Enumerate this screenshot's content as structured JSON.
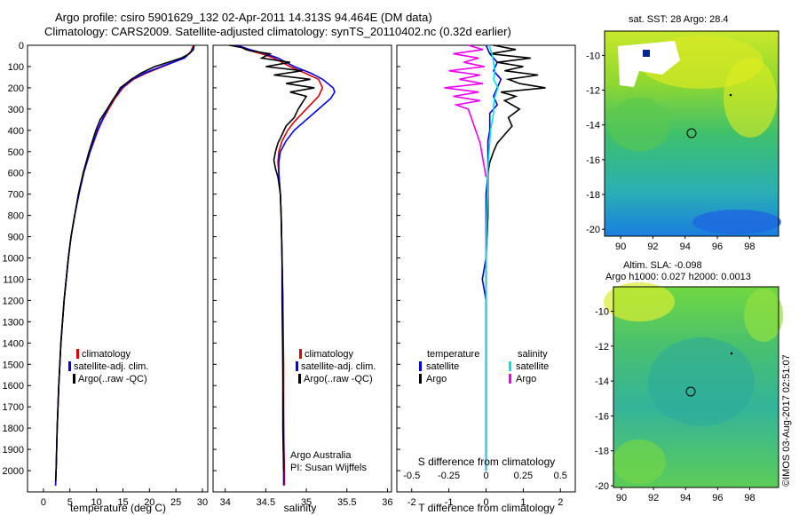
{
  "header": {
    "line1": "Argo profile: csiro 5901629_132 02-Apr-2011 14.313S 94.464E (DM data)",
    "line2": "Climatology: CARS2009. Satellite-adjusted climatology: synTS_20110402.nc (0.32d earlier)"
  },
  "map_titles": {
    "sst": "sat. SST: 28 Argo: 28.4",
    "sla": "Altim. SLA: -0.098",
    "sla2": "Argo h1000: 0.027 h2000: 0.0013"
  },
  "stamp": "©IMOS 03-Aug-2017 02:51:07",
  "colors": {
    "climatology": "#dd0000",
    "satellite": "#0000ee",
    "argo": "#000000",
    "satellite_s": "#00e5ee",
    "argo_s": "#ee00ee"
  },
  "chart_data": [
    {
      "type": "line",
      "xlabel": "temperature (deg C)",
      "ylabel": "",
      "xlim": [
        -3,
        31
      ],
      "ylim": [
        2100,
        0
      ],
      "xticks": [
        0,
        5,
        10,
        15,
        20,
        25,
        30
      ],
      "yticks": [
        0,
        100,
        200,
        300,
        400,
        500,
        600,
        700,
        800,
        900,
        1000,
        1100,
        1200,
        1300,
        1400,
        1500,
        1600,
        1700,
        1800,
        1900,
        2000
      ],
      "legend": [
        "climatology",
        "satellite-adj. clim.",
        "Argo(..raw -QC)"
      ],
      "series": [
        {
          "name": "climatology",
          "color": "#dd0000",
          "depth": [
            0,
            30,
            60,
            80,
            100,
            130,
            160,
            200,
            250,
            300,
            350,
            400,
            500,
            600,
            700,
            800,
            900,
            1000,
            1200,
            1400,
            1600,
            1800,
            2000,
            2070
          ],
          "values": [
            28.3,
            27.8,
            26.5,
            24.5,
            22.5,
            19.5,
            17.0,
            15.0,
            13.5,
            12.3,
            11.2,
            10.3,
            8.8,
            7.6,
            6.7,
            5.9,
            5.2,
            4.7,
            3.9,
            3.3,
            2.9,
            2.6,
            2.4,
            2.3
          ]
        },
        {
          "name": "satellite-adj. clim.",
          "color": "#0000ee",
          "depth": [
            0,
            30,
            60,
            80,
            100,
            130,
            160,
            200,
            250,
            300,
            350,
            400,
            500,
            600,
            700,
            800,
            900,
            1000,
            1200,
            1400,
            1600,
            1800,
            2000,
            2070
          ],
          "values": [
            28.5,
            27.9,
            26.6,
            24.4,
            22.2,
            19.2,
            16.8,
            14.8,
            13.3,
            12.1,
            11.1,
            10.2,
            8.8,
            7.6,
            6.7,
            5.9,
            5.2,
            4.7,
            3.9,
            3.3,
            2.9,
            2.6,
            2.4,
            2.3
          ]
        },
        {
          "name": "Argo(..raw -QC)",
          "color": "#000000",
          "depth": [
            0,
            20,
            40,
            60,
            80,
            100,
            130,
            160,
            200,
            230,
            260,
            300,
            350,
            400,
            500,
            600,
            700,
            800,
            900,
            1000,
            1200,
            1400,
            1600,
            1800,
            2000,
            2050
          ],
          "values": [
            28.4,
            28.3,
            27.5,
            26.0,
            23.5,
            21.0,
            18.5,
            16.6,
            14.5,
            13.8,
            13.0,
            12.0,
            10.7,
            9.9,
            8.6,
            7.5,
            6.6,
            5.9,
            5.2,
            4.7,
            3.9,
            3.3,
            2.9,
            2.6,
            2.4,
            2.3
          ]
        }
      ]
    },
    {
      "type": "line",
      "xlabel": "salinity",
      "ylabel": "",
      "xlim": [
        33.85,
        36.05
      ],
      "ylim": [
        2100,
        0
      ],
      "xticks": [
        34,
        34.5,
        35,
        35.5,
        36
      ],
      "legend": [
        "climatology",
        "satellite-adj. clim.",
        "Argo(..raw -QC)"
      ],
      "annotation": [
        "Argo Australia",
        "PI: Susan Wijffels"
      ],
      "series": [
        {
          "name": "climatology",
          "color": "#dd0000",
          "depth": [
            0,
            20,
            40,
            60,
            80,
            100,
            130,
            160,
            200,
            240,
            280,
            320,
            360,
            400,
            450,
            500,
            550,
            600,
            700,
            800,
            1000,
            1200,
            1500,
            1800,
            2000,
            2070
          ],
          "values": [
            34.15,
            34.25,
            34.45,
            34.6,
            34.7,
            34.8,
            34.98,
            35.15,
            35.2,
            35.15,
            35.05,
            34.95,
            34.85,
            34.77,
            34.7,
            34.66,
            34.65,
            34.66,
            34.68,
            34.69,
            34.7,
            34.71,
            34.72,
            34.72,
            34.73,
            34.73
          ]
        },
        {
          "name": "satellite-adj. clim.",
          "color": "#0000ee",
          "depth": [
            0,
            20,
            40,
            60,
            80,
            100,
            130,
            160,
            200,
            220,
            250,
            300,
            350,
            400,
            450,
            500,
            550,
            600,
            700,
            800,
            1000,
            1200,
            1500,
            1800,
            2000,
            2070
          ],
          "values": [
            34.15,
            34.3,
            34.5,
            34.65,
            34.75,
            34.85,
            35.05,
            35.2,
            35.33,
            35.35,
            35.3,
            35.15,
            35.0,
            34.85,
            34.75,
            34.68,
            34.66,
            34.66,
            34.68,
            34.69,
            34.7,
            34.71,
            34.71,
            34.72,
            34.72,
            34.72
          ]
        },
        {
          "name": "Argo(..raw -QC)",
          "color": "#000000",
          "depth": [
            0,
            10,
            25,
            40,
            60,
            80,
            100,
            120,
            140,
            160,
            180,
            200,
            220,
            240,
            270,
            300,
            340,
            380,
            420,
            460,
            500,
            540,
            580,
            620,
            700,
            800,
            1000,
            1200,
            1500,
            1800,
            2000
          ],
          "values": [
            34.05,
            34.2,
            34.3,
            34.55,
            34.45,
            34.8,
            34.5,
            34.95,
            34.6,
            35.05,
            34.75,
            35.1,
            34.8,
            35.0,
            34.95,
            34.9,
            34.85,
            34.75,
            34.7,
            34.65,
            34.62,
            34.6,
            34.62,
            34.65,
            34.68,
            34.69,
            34.7,
            34.7,
            34.71,
            34.71,
            34.72
          ]
        }
      ]
    },
    {
      "type": "line",
      "xlabel": "T difference from climatology",
      "xlabel_top": "S difference from climatology",
      "ylabel": "",
      "xlim": [
        -2.4,
        2.4
      ],
      "ylim": [
        2100,
        0
      ],
      "xticks": [
        -2,
        -1,
        0,
        1,
        2
      ],
      "xticks_s": [
        -0.5,
        -0.25,
        0,
        0.25,
        0.5
      ],
      "legend_titles": [
        "temperature",
        "salinity"
      ],
      "legend": [
        "satellite",
        "Argo",
        "satellite",
        "Argo"
      ],
      "series": [
        {
          "name": "satellite",
          "color": "#0000ee",
          "depth": [
            0,
            40,
            80,
            120,
            160,
            200,
            240,
            280,
            320,
            360,
            400,
            450,
            500,
            600,
            700,
            800,
            1000,
            1100,
            1200,
            1500,
            1800,
            2000
          ],
          "values": [
            0.0,
            0.1,
            0.3,
            0.2,
            0.4,
            0.3,
            0.2,
            0.3,
            0.1,
            0.1,
            0.1,
            0.05,
            0.05,
            0.05,
            0.0,
            0.0,
            0.0,
            -0.1,
            0.0,
            0.0,
            0.0,
            0.0
          ]
        },
        {
          "name": "Argo",
          "color": "#000000",
          "depth": [
            0,
            20,
            40,
            60,
            80,
            100,
            120,
            140,
            160,
            180,
            200,
            220,
            240,
            260,
            300,
            340,
            380,
            420,
            460,
            500,
            550,
            600,
            700,
            800,
            1000,
            1200,
            1500,
            1800,
            2000
          ],
          "values": [
            0.2,
            0.8,
            0.1,
            1.2,
            0.3,
            1.0,
            0.5,
            1.4,
            0.6,
            0.9,
            1.6,
            0.4,
            0.8,
            0.5,
            0.9,
            0.6,
            0.7,
            0.5,
            0.3,
            0.2,
            0.1,
            0.05,
            0.05,
            0.05,
            0.0,
            0.0,
            0.0,
            0.0,
            0.0
          ]
        },
        {
          "name": "satellite",
          "color": "#00e5ee",
          "depth": [
            0,
            40,
            80,
            120,
            160,
            200,
            240,
            280,
            320,
            360,
            400,
            500,
            600,
            700,
            800,
            1000,
            1200,
            1500,
            1800,
            2000
          ],
          "values": [
            0.02,
            0.04,
            0.05,
            0.06,
            0.05,
            0.08,
            0.06,
            0.05,
            0.05,
            0.04,
            0.03,
            0.02,
            0.01,
            0.01,
            0.005,
            0.0,
            0.0,
            0.0,
            0.0,
            0.0
          ]
        },
        {
          "name": "Argo",
          "color": "#ee00ee",
          "depth": [
            0,
            20,
            40,
            60,
            80,
            100,
            120,
            140,
            160,
            180,
            200,
            220,
            240,
            260,
            280,
            300,
            340,
            380,
            420,
            460,
            500,
            540,
            580,
            620
          ],
          "values": [
            -0.12,
            -0.02,
            -0.22,
            -0.05,
            -0.15,
            -0.01,
            -0.25,
            -0.04,
            -0.18,
            -0.02,
            -0.28,
            -0.05,
            -0.22,
            -0.04,
            -0.2,
            -0.12,
            -0.1,
            -0.08,
            -0.06,
            -0.04,
            -0.03,
            -0.02,
            -0.01,
            0.0
          ]
        }
      ]
    }
  ],
  "maps": {
    "sst": {
      "yticks": [
        "-10",
        "-12",
        "-14",
        "-16",
        "-18",
        "-20"
      ],
      "xticks": [
        "90",
        "92",
        "94",
        "96",
        "98"
      ]
    },
    "sla": {
      "yticks": [
        "-10",
        "-12",
        "-14",
        "-16",
        "-18",
        "-20"
      ],
      "xticks": [
        "90",
        "92",
        "94",
        "96",
        "98"
      ]
    }
  }
}
